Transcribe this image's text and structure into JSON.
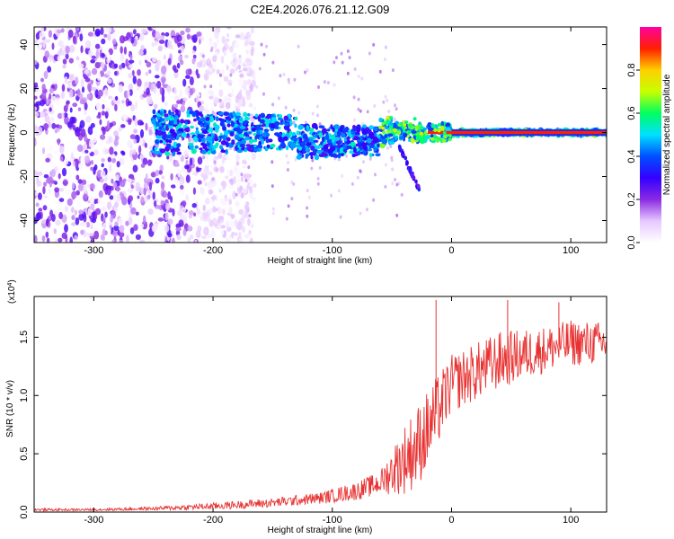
{
  "title": "C2E4.2026.076.21.12.G09",
  "chart_data": [
    {
      "type": "heatmap",
      "xlabel": "Height of straight line (km)",
      "ylabel": "Frequency (Hz)",
      "xlim": [
        -350,
        130
      ],
      "ylim": [
        -50,
        48
      ],
      "x_ticks": [
        -300,
        -200,
        -100,
        0,
        100
      ],
      "y_ticks": [
        -40,
        -20,
        0,
        20,
        40
      ],
      "colorbar": {
        "label": "Normalized spectral amplitude",
        "range": [
          0,
          1
        ],
        "ticks": [
          "0.0",
          "0.2",
          "0.4",
          "0.6",
          "0.8"
        ],
        "tick_values": [
          0,
          0.2,
          0.4,
          0.6,
          0.8
        ],
        "colors": [
          "#ffffff",
          "#e6c8ff",
          "#8a2be2",
          "#3300ff",
          "#0050ff",
          "#00e0ff",
          "#00ff60",
          "#c8ff00",
          "#ffd000",
          "#ff2000",
          "#ff00a0"
        ]
      },
      "features": {
        "noise_region_x": [
          -350,
          -205
        ],
        "noise_freq_range": [
          -50,
          48
        ],
        "band_center_hz": 0,
        "band_x_range": [
          -250,
          130
        ],
        "branch_x": [
          -45,
          -27
        ],
        "branch_y": [
          -5,
          -26
        ],
        "strong_line_x": [
          0,
          130
        ]
      },
      "grid": false,
      "legend": "none"
    },
    {
      "type": "line",
      "xlabel": "Height of straight line (km)",
      "ylabel": "SNR (10 * v/v)",
      "exponent_label": "(x10",
      "exponent_power": "4",
      "xlim": [
        -350,
        130
      ],
      "ylim": [
        0,
        1.85
      ],
      "x_ticks": [
        -300,
        -200,
        -100,
        0,
        100
      ],
      "y_ticks": [
        "0.0",
        "0.5",
        "1.0",
        "1.5"
      ],
      "y_tick_values": [
        0.0,
        0.5,
        1.0,
        1.5
      ],
      "color": "#e83232",
      "series_envelope": {
        "x": [
          -350,
          -300,
          -250,
          -200,
          -150,
          -110,
          -80,
          -60,
          -50,
          -40,
          -30,
          -20,
          -10,
          0,
          20,
          40,
          60,
          80,
          100,
          130
        ],
        "mean": [
          0.02,
          0.02,
          0.03,
          0.05,
          0.08,
          0.12,
          0.18,
          0.25,
          0.35,
          0.45,
          0.55,
          0.7,
          0.9,
          1.1,
          1.2,
          1.3,
          1.35,
          1.4,
          1.45,
          1.45
        ],
        "amp": [
          0.01,
          0.01,
          0.015,
          0.03,
          0.04,
          0.05,
          0.08,
          0.1,
          0.2,
          0.3,
          0.35,
          0.35,
          0.3,
          0.25,
          0.25,
          0.25,
          0.22,
          0.2,
          0.2,
          0.18
        ]
      },
      "peaks": [
        {
          "x": -13,
          "y": 1.82
        },
        {
          "x": 47,
          "y": 1.82
        },
        {
          "x": 90,
          "y": 1.8
        }
      ],
      "grid": false,
      "legend": "none"
    }
  ]
}
